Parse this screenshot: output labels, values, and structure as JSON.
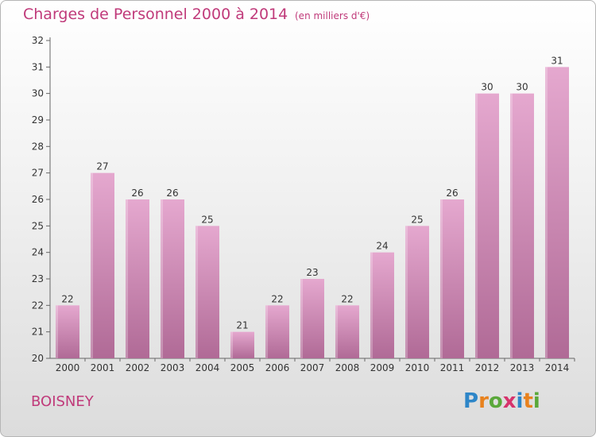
{
  "header": {
    "title": "Charges de Personnel 2000 à 2014",
    "unit": "(en milliers d'€)"
  },
  "footer": {
    "town": "BOISNEY",
    "logo": "Proxiti",
    "logo_letters": [
      "P",
      "r",
      "o",
      "x",
      "i",
      "t",
      "i"
    ],
    "logo_colors": [
      "#2e86c8",
      "#e8821e",
      "#5aa83a",
      "#d6336c",
      "#2e86c8",
      "#e8821e",
      "#5aa83a"
    ]
  },
  "colors": {
    "bar_top": "#e5a8cf",
    "bar_bottom": "#b06a96",
    "text_accent": "#c03a7a",
    "axis": "#333333"
  },
  "chart_data": {
    "type": "bar",
    "title": "Charges de Personnel 2000 à 2014",
    "ylabel": "(en milliers d'€)",
    "categories": [
      "2000",
      "2001",
      "2002",
      "2003",
      "2004",
      "2005",
      "2006",
      "2007",
      "2008",
      "2009",
      "2010",
      "2011",
      "2012",
      "2013",
      "2014"
    ],
    "values": [
      22,
      27,
      26,
      26,
      25,
      21,
      22,
      23,
      22,
      24,
      25,
      26,
      30,
      30,
      31
    ],
    "ylim": [
      20,
      32
    ],
    "yticks": [
      20,
      21,
      22,
      23,
      24,
      25,
      26,
      27,
      28,
      29,
      30,
      31,
      32
    ],
    "grid": false,
    "data_labels": true
  }
}
